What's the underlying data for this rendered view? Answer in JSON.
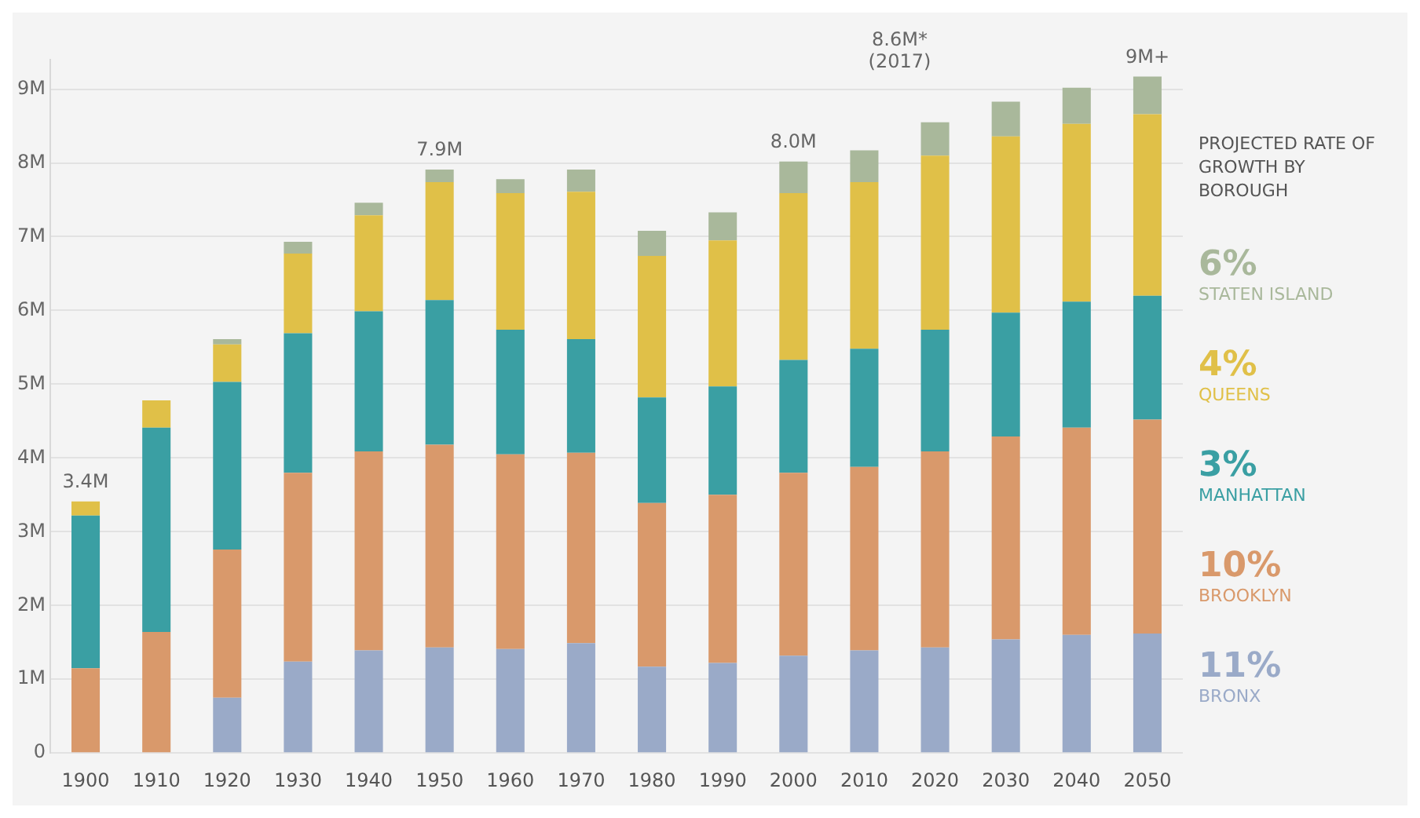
{
  "chart_data": {
    "type": "bar",
    "stacked": true,
    "legend_title": "PROJECTED RATE OF GROWTH BY BOROUGH",
    "legend": "right",
    "grid": "y",
    "categories": [
      "1900",
      "1910",
      "1920",
      "1930",
      "1940",
      "1950",
      "1960",
      "1970",
      "1980",
      "1990",
      "2000",
      "2010",
      "2020",
      "2030",
      "2040",
      "2050"
    ],
    "series": [
      {
        "name": "BRONX",
        "color": "#9aaac8",
        "values": [
          0,
          0,
          0.75,
          1.24,
          1.39,
          1.43,
          1.41,
          1.49,
          1.17,
          1.22,
          1.32,
          1.39,
          1.43,
          1.54,
          1.6,
          1.62
        ]
      },
      {
        "name": "BROOKLYN",
        "color": "#d9996b",
        "values": [
          1.15,
          1.64,
          2.01,
          2.56,
          2.7,
          2.75,
          2.64,
          2.58,
          2.22,
          2.28,
          2.48,
          2.49,
          2.66,
          2.75,
          2.81,
          2.9
        ]
      },
      {
        "name": "MANHATTAN",
        "color": "#3a9fa3",
        "values": [
          2.07,
          2.77,
          2.27,
          1.89,
          1.9,
          1.96,
          1.69,
          1.54,
          1.43,
          1.47,
          1.53,
          1.6,
          1.65,
          1.68,
          1.71,
          1.68
        ]
      },
      {
        "name": "QUEENS",
        "color": "#e0c048",
        "values": [
          0.19,
          0.37,
          0.51,
          1.08,
          1.3,
          1.6,
          1.85,
          2.0,
          1.92,
          1.98,
          2.26,
          2.26,
          2.36,
          2.39,
          2.41,
          2.46
        ]
      },
      {
        "name": "STATEN ISLAND",
        "color": "#a9b89b",
        "values": [
          null,
          null,
          0.07,
          0.16,
          0.17,
          0.17,
          0.19,
          0.3,
          0.34,
          0.38,
          0.43,
          0.43,
          0.45,
          0.47,
          0.49,
          0.51
        ]
      }
    ],
    "totals": [
      "3.4M",
      null,
      null,
      null,
      null,
      "7.9M",
      null,
      null,
      null,
      null,
      "8.0M",
      null,
      null,
      null,
      null,
      "9M+"
    ],
    "annotations": [
      "8.6M* (2017)",
      "11%",
      "10%",
      "3%",
      "4%",
      "6%"
    ],
    "ylim": [
      0,
      9.4
    ],
    "yticks": [
      0,
      {
        "value": 1,
        "label": "1M"
      },
      {
        "value": 2,
        "label": "2M"
      },
      {
        "value": 3,
        "label": "3M"
      },
      {
        "value": 4,
        "label": "4M"
      },
      {
        "value": 5,
        "label": "5M"
      },
      {
        "value": 6,
        "label": "6M"
      },
      {
        "value": 7,
        "label": "7M"
      },
      {
        "value": 8,
        "label": "8M"
      },
      {
        "value": 9,
        "label": "9M"
      }
    ]
  }
}
